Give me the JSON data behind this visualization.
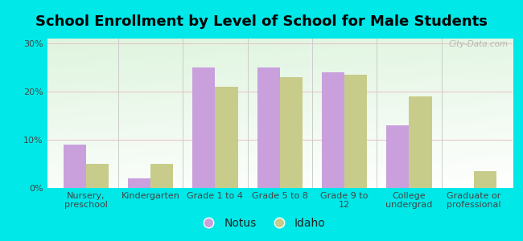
{
  "title": "School Enrollment by Level of School for Male Students",
  "categories": [
    "Nursery,\npreschool",
    "Kindergarten",
    "Grade 1 to 4",
    "Grade 5 to 8",
    "Grade 9 to\n12",
    "College\nundergrad",
    "Graduate or\nprofessional"
  ],
  "notus_values": [
    9,
    2,
    25,
    25,
    24,
    13,
    0
  ],
  "idaho_values": [
    5,
    5,
    21,
    23,
    23.5,
    19,
    3.5
  ],
  "notus_color": "#c9a0dc",
  "idaho_color": "#c8cc8a",
  "background_color": "#00e8e8",
  "gradient_bottom_color": "#c8f0c8",
  "gradient_top_color": "#f0fff0",
  "ylim": [
    0,
    31
  ],
  "yticks": [
    0,
    10,
    20,
    30
  ],
  "ytick_labels": [
    "0%",
    "10%",
    "20%",
    "30%"
  ],
  "legend_labels": [
    "Notus",
    "Idaho"
  ],
  "bar_width": 0.35,
  "title_fontsize": 13,
  "tick_fontsize": 8,
  "legend_fontsize": 10,
  "watermark": "City-Data.com",
  "xlabel_color": "#444444",
  "ylabel_color": "#444444",
  "grid_color": "#e8c8c8",
  "separator_color": "#cccccc"
}
